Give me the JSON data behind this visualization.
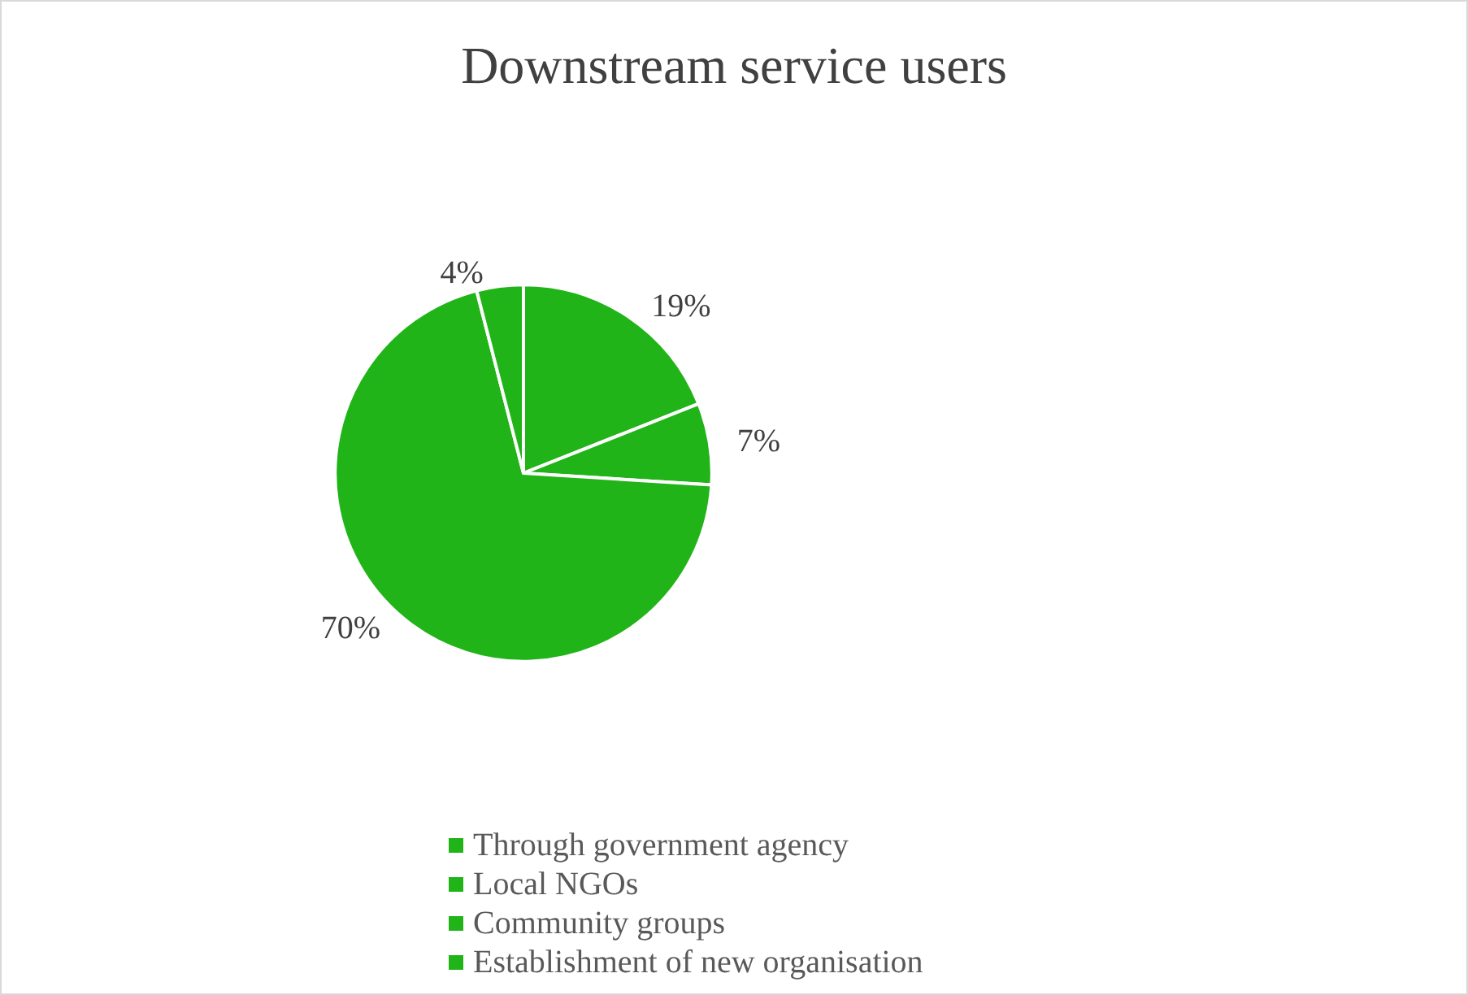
{
  "chart_data": {
    "type": "pie",
    "title": "Downstream service users",
    "categories": [
      "Through government agency",
      "Local NGOs",
      "Community groups",
      "Establishment of new organisation"
    ],
    "values": [
      19,
      7,
      70,
      4
    ],
    "colors": [
      "#21b418",
      "#21b418",
      "#21b418",
      "#21b418"
    ],
    "value_labels": [
      "19%",
      "7%",
      "70%",
      "4%"
    ],
    "legend": "bottom"
  }
}
